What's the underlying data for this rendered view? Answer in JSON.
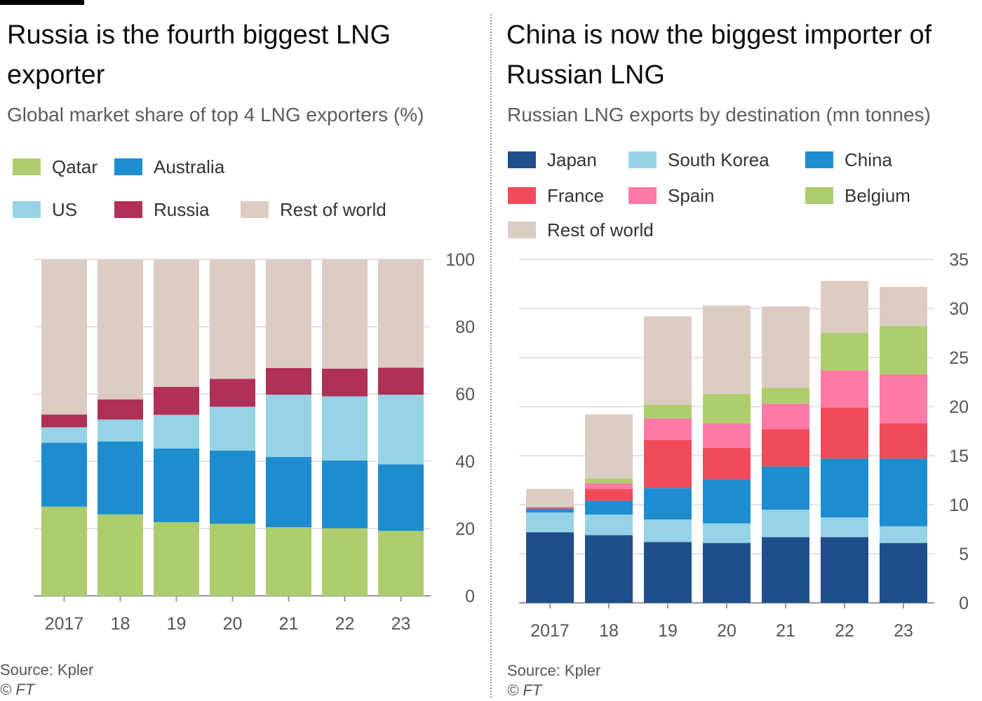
{
  "chart_data": [
    {
      "type": "bar",
      "stacked": true,
      "title": "Russia is the fourth biggest LNG exporter",
      "subtitle": "Global market share of top 4 LNG exporters (%)",
      "categories": [
        "2017",
        "18",
        "19",
        "20",
        "21",
        "22",
        "23"
      ],
      "series": [
        {
          "name": "Qatar",
          "color": "#aece6e",
          "values": [
            26.5,
            24.2,
            21.9,
            21.4,
            20.4,
            20.1,
            19.3
          ]
        },
        {
          "name": "Australia",
          "color": "#1e8dcf",
          "values": [
            19.0,
            21.7,
            21.9,
            21.8,
            20.9,
            20.1,
            19.8
          ]
        },
        {
          "name": "US",
          "color": "#96d3e6",
          "values": [
            4.6,
            6.5,
            10.0,
            13.0,
            18.5,
            19.1,
            20.7
          ]
        },
        {
          "name": "Russia",
          "color": "#b03058",
          "values": [
            3.8,
            6.0,
            8.3,
            8.3,
            7.9,
            8.2,
            8.0
          ]
        },
        {
          "name": "Rest of world",
          "color": "#dcccc3",
          "values": [
            46.1,
            41.6,
            37.9,
            35.5,
            32.3,
            32.5,
            32.2
          ]
        }
      ],
      "ylim": [
        0,
        100
      ],
      "yticks": [
        0,
        20,
        40,
        60,
        80,
        100
      ],
      "source": "Source: Kpler",
      "credit": "© FT"
    },
    {
      "type": "bar",
      "stacked": true,
      "title": "China is now the biggest importer of Russian LNG",
      "subtitle": "Russian LNG exports by destination (mn tonnes)",
      "categories": [
        "2017",
        "18",
        "19",
        "20",
        "21",
        "22",
        "23"
      ],
      "series": [
        {
          "name": "Japan",
          "color": "#1f4e8c",
          "values": [
            7.2,
            6.9,
            6.2,
            6.1,
            6.7,
            6.7,
            6.1
          ]
        },
        {
          "name": "South Korea",
          "color": "#96d3e6",
          "values": [
            2.0,
            2.1,
            2.3,
            2.0,
            2.8,
            2.0,
            1.7
          ]
        },
        {
          "name": "China",
          "color": "#1e8dcf",
          "values": [
            0.4,
            1.4,
            3.2,
            4.5,
            4.4,
            6.0,
            6.9
          ]
        },
        {
          "name": "France",
          "color": "#f04b5a",
          "values": [
            0.1,
            1.2,
            4.9,
            3.2,
            3.8,
            5.2,
            3.6
          ]
        },
        {
          "name": "Spain",
          "color": "#ff7aa5",
          "values": [
            0.1,
            0.6,
            2.2,
            2.5,
            2.6,
            3.8,
            5.0
          ]
        },
        {
          "name": "Belgium",
          "color": "#aece6e",
          "values": [
            0.0,
            0.5,
            1.4,
            3.0,
            1.6,
            3.8,
            4.9
          ]
        },
        {
          "name": "Rest of world",
          "color": "#dcccc3",
          "values": [
            1.8,
            6.5,
            9.0,
            9.0,
            8.3,
            5.3,
            4.0
          ]
        }
      ],
      "ylim": [
        0,
        35
      ],
      "yticks": [
        0,
        5,
        10,
        15,
        20,
        25,
        30,
        35
      ],
      "source": "Source: Kpler",
      "credit": "© FT"
    }
  ]
}
